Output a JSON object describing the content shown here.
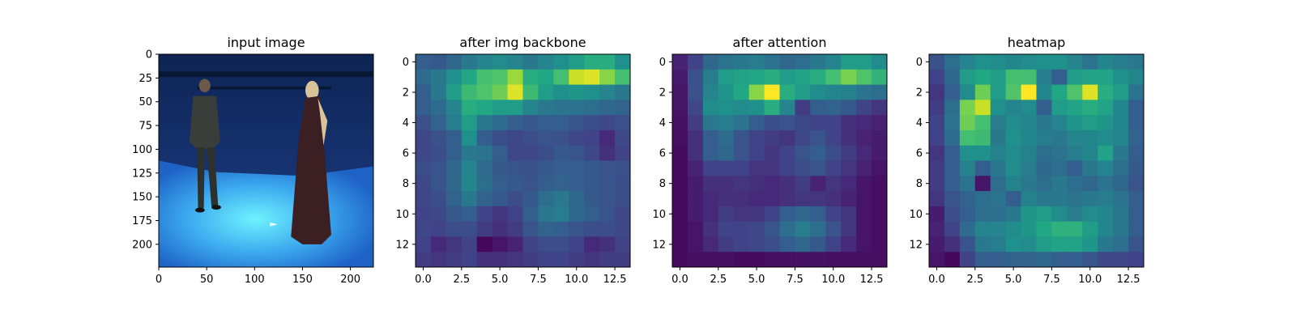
{
  "chart_data": [
    {
      "type": "image",
      "title": "input image",
      "xlim": [
        0,
        224
      ],
      "ylim": [
        224,
        0
      ],
      "xticks": [
        0,
        50,
        100,
        150,
        200
      ],
      "yticks": [
        0,
        25,
        50,
        75,
        100,
        125,
        150,
        175,
        200
      ],
      "xtick_labels": [
        "0",
        "50",
        "100",
        "150",
        "200"
      ],
      "ytick_labels": [
        "0",
        "25",
        "50",
        "75",
        "100",
        "125",
        "150",
        "175",
        "200"
      ],
      "colors": {
        "wall": "#1d3f8a",
        "floor": "#3aa6ee",
        "floor_glow": "#6ff2ff",
        "person": "#3a3e3a",
        "dress": "#3b1f22",
        "hair": "#d9c39a"
      }
    },
    {
      "type": "heatmap",
      "title": "after img backbone",
      "colormap": "viridis",
      "xlim": [
        -0.5,
        13.5
      ],
      "ylim": [
        13.5,
        -0.5
      ],
      "xticks": [
        0,
        2.5,
        5,
        7.5,
        10,
        12.5
      ],
      "xtick_labels": [
        "0.0",
        "2.5",
        "5.0",
        "7.5",
        "10.0",
        "12.5"
      ],
      "yticks": [
        0,
        2,
        4,
        6,
        8,
        10,
        12
      ],
      "ytick_labels": [
        "0",
        "2",
        "4",
        "6",
        "8",
        "10",
        "12"
      ],
      "values": [
        [
          0.3,
          0.28,
          0.34,
          0.4,
          0.45,
          0.48,
          0.45,
          0.4,
          0.45,
          0.5,
          0.55,
          0.62,
          0.62,
          0.5
        ],
        [
          0.35,
          0.4,
          0.5,
          0.6,
          0.7,
          0.72,
          0.85,
          0.62,
          0.6,
          0.7,
          0.92,
          0.95,
          0.82,
          0.7
        ],
        [
          0.3,
          0.4,
          0.55,
          0.68,
          0.72,
          0.78,
          0.95,
          0.68,
          0.55,
          0.5,
          0.52,
          0.5,
          0.45,
          0.4
        ],
        [
          0.3,
          0.35,
          0.45,
          0.62,
          0.6,
          0.55,
          0.55,
          0.45,
          0.4,
          0.38,
          0.38,
          0.36,
          0.34,
          0.32
        ],
        [
          0.25,
          0.32,
          0.42,
          0.55,
          0.4,
          0.35,
          0.3,
          0.28,
          0.3,
          0.3,
          0.26,
          0.24,
          0.22,
          0.25
        ],
        [
          0.22,
          0.25,
          0.3,
          0.5,
          0.3,
          0.24,
          0.22,
          0.24,
          0.26,
          0.25,
          0.22,
          0.2,
          0.12,
          0.22
        ],
        [
          0.22,
          0.24,
          0.3,
          0.4,
          0.38,
          0.3,
          0.22,
          0.22,
          0.24,
          0.28,
          0.26,
          0.22,
          0.14,
          0.2
        ],
        [
          0.24,
          0.26,
          0.34,
          0.45,
          0.35,
          0.28,
          0.26,
          0.25,
          0.28,
          0.3,
          0.3,
          0.28,
          0.26,
          0.25
        ],
        [
          0.22,
          0.26,
          0.34,
          0.46,
          0.36,
          0.3,
          0.28,
          0.26,
          0.3,
          0.32,
          0.3,
          0.28,
          0.26,
          0.24
        ],
        [
          0.22,
          0.24,
          0.32,
          0.4,
          0.32,
          0.28,
          0.24,
          0.28,
          0.36,
          0.4,
          0.34,
          0.28,
          0.26,
          0.24
        ],
        [
          0.2,
          0.22,
          0.28,
          0.3,
          0.2,
          0.16,
          0.2,
          0.3,
          0.4,
          0.42,
          0.34,
          0.3,
          0.26,
          0.22
        ],
        [
          0.22,
          0.2,
          0.24,
          0.24,
          0.18,
          0.14,
          0.18,
          0.26,
          0.32,
          0.3,
          0.26,
          0.24,
          0.24,
          0.22
        ],
        [
          0.2,
          0.12,
          0.16,
          0.2,
          0.02,
          0.06,
          0.1,
          0.2,
          0.24,
          0.24,
          0.2,
          0.12,
          0.14,
          0.2
        ],
        [
          0.18,
          0.16,
          0.18,
          0.2,
          0.14,
          0.14,
          0.16,
          0.18,
          0.2,
          0.2,
          0.18,
          0.16,
          0.18,
          0.18
        ]
      ]
    },
    {
      "type": "heatmap",
      "title": "after attention",
      "colormap": "viridis",
      "xlim": [
        -0.5,
        13.5
      ],
      "ylim": [
        13.5,
        -0.5
      ],
      "xticks": [
        0,
        2.5,
        5,
        7.5,
        10,
        12.5
      ],
      "xtick_labels": [
        "0.0",
        "2.5",
        "5.0",
        "7.5",
        "10.0",
        "12.5"
      ],
      "yticks": [
        0,
        2,
        4,
        6,
        8,
        10,
        12
      ],
      "ytick_labels": [
        "0",
        "2",
        "4",
        "6",
        "8",
        "10",
        "12"
      ],
      "values": [
        [
          0.1,
          0.2,
          0.34,
          0.38,
          0.4,
          0.42,
          0.38,
          0.34,
          0.36,
          0.4,
          0.45,
          0.55,
          0.55,
          0.48
        ],
        [
          0.08,
          0.25,
          0.42,
          0.55,
          0.58,
          0.6,
          0.62,
          0.55,
          0.58,
          0.62,
          0.7,
          0.8,
          0.72,
          0.65
        ],
        [
          0.06,
          0.25,
          0.45,
          0.52,
          0.6,
          0.82,
          1.0,
          0.62,
          0.55,
          0.48,
          0.45,
          0.44,
          0.38,
          0.36
        ],
        [
          0.06,
          0.22,
          0.48,
          0.5,
          0.48,
          0.5,
          0.62,
          0.45,
          0.18,
          0.3,
          0.32,
          0.28,
          0.2,
          0.16
        ],
        [
          0.05,
          0.18,
          0.4,
          0.42,
          0.38,
          0.3,
          0.24,
          0.26,
          0.22,
          0.2,
          0.2,
          0.14,
          0.12,
          0.1
        ],
        [
          0.04,
          0.14,
          0.3,
          0.35,
          0.26,
          0.2,
          0.18,
          0.16,
          0.22,
          0.26,
          0.2,
          0.14,
          0.1,
          0.08
        ],
        [
          0.03,
          0.14,
          0.3,
          0.34,
          0.26,
          0.2,
          0.16,
          0.2,
          0.26,
          0.3,
          0.24,
          0.18,
          0.12,
          0.08
        ],
        [
          0.03,
          0.1,
          0.2,
          0.2,
          0.2,
          0.16,
          0.16,
          0.2,
          0.24,
          0.26,
          0.2,
          0.16,
          0.1,
          0.06
        ],
        [
          0.03,
          0.08,
          0.14,
          0.14,
          0.16,
          0.14,
          0.12,
          0.14,
          0.18,
          0.1,
          0.16,
          0.12,
          0.06,
          0.04
        ],
        [
          0.03,
          0.08,
          0.12,
          0.14,
          0.14,
          0.12,
          0.12,
          0.14,
          0.16,
          0.16,
          0.14,
          0.1,
          0.06,
          0.04
        ],
        [
          0.03,
          0.08,
          0.12,
          0.18,
          0.16,
          0.16,
          0.2,
          0.3,
          0.34,
          0.3,
          0.2,
          0.16,
          0.06,
          0.04
        ],
        [
          0.03,
          0.06,
          0.14,
          0.2,
          0.2,
          0.22,
          0.26,
          0.36,
          0.42,
          0.36,
          0.26,
          0.16,
          0.06,
          0.04
        ],
        [
          0.03,
          0.06,
          0.12,
          0.18,
          0.2,
          0.22,
          0.24,
          0.3,
          0.34,
          0.28,
          0.2,
          0.12,
          0.06,
          0.04
        ],
        [
          0.03,
          0.04,
          0.04,
          0.04,
          0.03,
          0.03,
          0.04,
          0.04,
          0.05,
          0.05,
          0.04,
          0.04,
          0.04,
          0.04
        ]
      ]
    },
    {
      "type": "heatmap",
      "title": "heatmap",
      "colormap": "viridis",
      "xlim": [
        -0.5,
        13.5
      ],
      "ylim": [
        13.5,
        -0.5
      ],
      "xticks": [
        0,
        2.5,
        5,
        7.5,
        10,
        12.5
      ],
      "xtick_labels": [
        "0.0",
        "2.5",
        "5.0",
        "7.5",
        "10.0",
        "12.5"
      ],
      "yticks": [
        0,
        2,
        4,
        6,
        8,
        10,
        12
      ],
      "ytick_labels": [
        "0",
        "2",
        "4",
        "6",
        "8",
        "10",
        "12"
      ],
      "values": [
        [
          0.25,
          0.36,
          0.45,
          0.5,
          0.48,
          0.46,
          0.48,
          0.5,
          0.5,
          0.45,
          0.38,
          0.46,
          0.42,
          0.4
        ],
        [
          0.2,
          0.34,
          0.55,
          0.6,
          0.55,
          0.7,
          0.7,
          0.42,
          0.3,
          0.55,
          0.58,
          0.58,
          0.5,
          0.46
        ],
        [
          0.16,
          0.3,
          0.48,
          0.78,
          0.55,
          0.72,
          1.0,
          0.46,
          0.6,
          0.72,
          0.95,
          0.62,
          0.55,
          0.38
        ],
        [
          0.18,
          0.36,
          0.8,
          0.92,
          0.5,
          0.45,
          0.48,
          0.3,
          0.55,
          0.58,
          0.62,
          0.58,
          0.46,
          0.3
        ],
        [
          0.2,
          0.38,
          0.78,
          0.7,
          0.42,
          0.48,
          0.45,
          0.4,
          0.45,
          0.52,
          0.55,
          0.52,
          0.46,
          0.3
        ],
        [
          0.2,
          0.35,
          0.7,
          0.68,
          0.4,
          0.5,
          0.46,
          0.42,
          0.4,
          0.45,
          0.46,
          0.48,
          0.45,
          0.32
        ],
        [
          0.16,
          0.3,
          0.5,
          0.5,
          0.44,
          0.48,
          0.44,
          0.36,
          0.38,
          0.42,
          0.46,
          0.58,
          0.4,
          0.3
        ],
        [
          0.18,
          0.3,
          0.44,
          0.3,
          0.4,
          0.48,
          0.42,
          0.34,
          0.36,
          0.3,
          0.4,
          0.45,
          0.36,
          0.28
        ],
        [
          0.18,
          0.3,
          0.38,
          0.06,
          0.36,
          0.44,
          0.4,
          0.36,
          0.4,
          0.36,
          0.34,
          0.38,
          0.34,
          0.26
        ],
        [
          0.16,
          0.26,
          0.32,
          0.36,
          0.38,
          0.3,
          0.44,
          0.4,
          0.4,
          0.38,
          0.4,
          0.42,
          0.38,
          0.3
        ],
        [
          0.08,
          0.24,
          0.3,
          0.36,
          0.36,
          0.4,
          0.52,
          0.55,
          0.48,
          0.42,
          0.48,
          0.46,
          0.4,
          0.3
        ],
        [
          0.1,
          0.2,
          0.35,
          0.45,
          0.45,
          0.48,
          0.52,
          0.6,
          0.64,
          0.64,
          0.55,
          0.46,
          0.4,
          0.3
        ],
        [
          0.08,
          0.14,
          0.26,
          0.4,
          0.42,
          0.5,
          0.48,
          0.55,
          0.58,
          0.58,
          0.52,
          0.4,
          0.36,
          0.26
        ],
        [
          0.06,
          0.02,
          0.2,
          0.3,
          0.3,
          0.32,
          0.32,
          0.34,
          0.3,
          0.3,
          0.26,
          0.22,
          0.22,
          0.2
        ]
      ]
    }
  ]
}
